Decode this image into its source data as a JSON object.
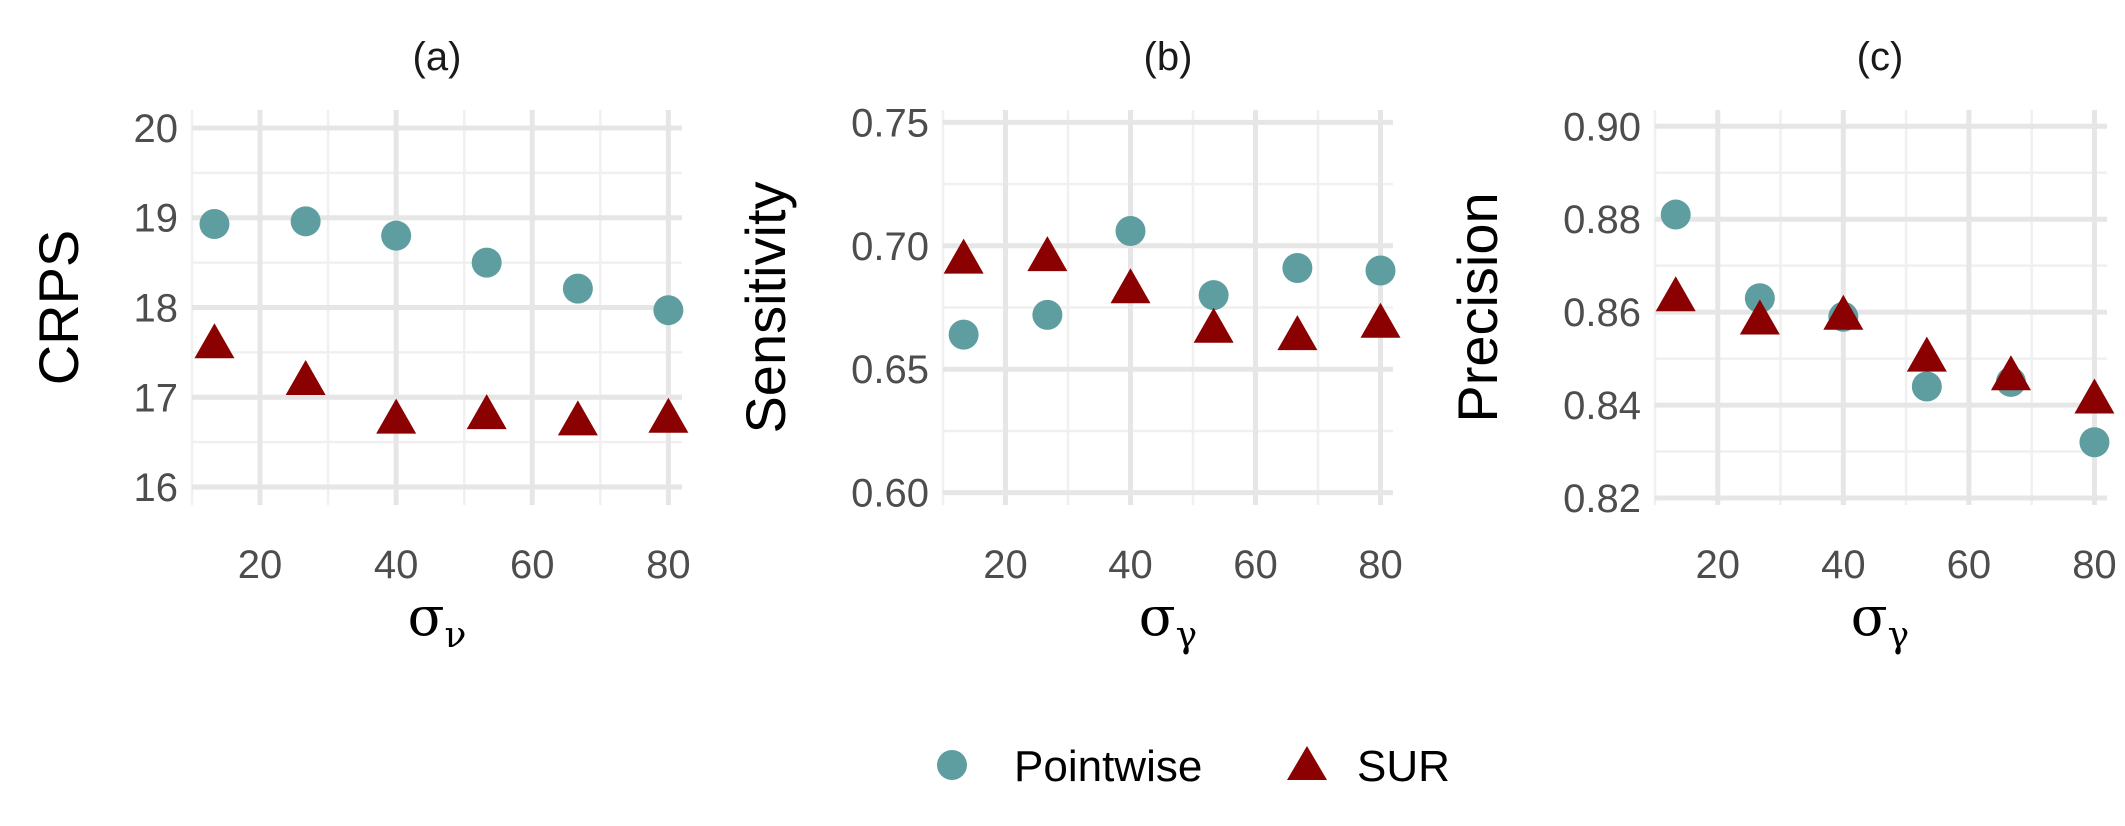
{
  "legend": {
    "items": [
      {
        "label": "Pointwise",
        "color": "#5f9ea0",
        "shape": "circle"
      },
      {
        "label": "SUR",
        "color": "#8b0000",
        "shape": "triangle"
      }
    ]
  },
  "chart_data": [
    {
      "type": "scatter",
      "title": "(a)",
      "xlabel": "σν",
      "ylabel": "CRPS",
      "xlim": [
        10,
        82
      ],
      "ylim": [
        15.8,
        20.2
      ],
      "xticks": [
        20,
        40,
        60,
        80
      ],
      "yticks": [
        16,
        17,
        18,
        19,
        20
      ],
      "ytick_labels": [
        "16",
        "17",
        "18",
        "19",
        "20"
      ],
      "x": [
        13.3,
        26.7,
        40,
        53.3,
        66.7,
        80
      ],
      "series": [
        {
          "name": "Pointwise",
          "values": [
            18.93,
            18.96,
            18.8,
            18.5,
            18.21,
            17.97
          ]
        },
        {
          "name": "SUR",
          "values": [
            17.58,
            17.17,
            16.74,
            16.79,
            16.72,
            16.75
          ]
        }
      ]
    },
    {
      "type": "scatter",
      "title": "(b)",
      "xlabel": "σγ",
      "ylabel": "Sensitivity",
      "xlim": [
        10,
        82
      ],
      "ylim": [
        0.595,
        0.755
      ],
      "xticks": [
        20,
        40,
        60,
        80
      ],
      "yticks": [
        0.6,
        0.65,
        0.7,
        0.75
      ],
      "ytick_labels": [
        "0.60",
        "0.65",
        "0.70",
        "0.75"
      ],
      "x": [
        13.3,
        26.7,
        40,
        53.3,
        66.7,
        80
      ],
      "series": [
        {
          "name": "Pointwise",
          "values": [
            0.664,
            0.672,
            0.706,
            0.68,
            0.691,
            0.69
          ]
        },
        {
          "name": "SUR",
          "values": [
            0.694,
            0.695,
            0.682,
            0.666,
            0.663,
            0.668
          ]
        }
      ]
    },
    {
      "type": "scatter",
      "title": "(c)",
      "xlabel": "σγ",
      "ylabel": "Precision",
      "xlim": [
        10,
        82
      ],
      "ylim": [
        0.8185,
        0.9035
      ],
      "xticks": [
        20,
        40,
        60,
        80
      ],
      "yticks": [
        0.82,
        0.84,
        0.86,
        0.88,
        0.9
      ],
      "ytick_labels": [
        "0.82",
        "0.84",
        "0.86",
        "0.88",
        "0.90"
      ],
      "x": [
        13.3,
        26.7,
        40,
        53.3,
        66.7,
        80
      ],
      "series": [
        {
          "name": "Pointwise",
          "values": [
            0.881,
            0.863,
            0.859,
            0.844,
            0.845,
            0.832
          ]
        },
        {
          "name": "SUR",
          "values": [
            0.863,
            0.858,
            0.859,
            0.85,
            0.846,
            0.841
          ]
        }
      ]
    }
  ]
}
